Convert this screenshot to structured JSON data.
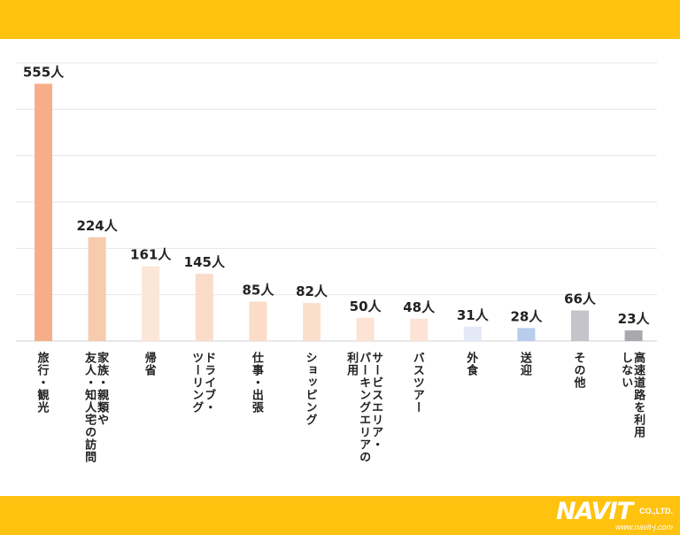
{
  "chart_data": {
    "type": "bar",
    "unit": "人",
    "categories": [
      [
        "旅行・観光"
      ],
      [
        "家族・親類や",
        "友人・知人宅の訪問"
      ],
      [
        "帰省"
      ],
      [
        "ドライブ・",
        "ツーリング"
      ],
      [
        "仕事・出張"
      ],
      [
        "ショッピング"
      ],
      [
        "サービスエリア・",
        "パーキングエリアの",
        "利用"
      ],
      [
        "バスツアー"
      ],
      [
        "外食"
      ],
      [
        "送迎"
      ],
      [
        "その他"
      ],
      [
        "高速道路を利用",
        "しない"
      ]
    ],
    "values": [
      555,
      224,
      161,
      145,
      85,
      82,
      50,
      48,
      31,
      28,
      66,
      23
    ],
    "value_labels": [
      "555人",
      "224人",
      "161人",
      "145人",
      "85人",
      "82人",
      "50人",
      "48人",
      "31人",
      "28人",
      "66人",
      "23人"
    ],
    "colors": [
      "#F7AE88",
      "#F6CBAE",
      "#FCE6D8",
      "#FBDCCB",
      "#FBDCC7",
      "#FBDFCD",
      "#FCE3D5",
      "#FCE3D5",
      "#E3E9F7",
      "#B8CDEB",
      "#C6C4CB",
      "#A9A8AD"
    ],
    "ylim": [
      0,
      600
    ],
    "grid": true,
    "title": "",
    "xlabel": "",
    "ylabel": ""
  },
  "logo": {
    "main": "NAVIT",
    "suffix": "CO.,LTD.",
    "url": "www.navit-j.com"
  }
}
